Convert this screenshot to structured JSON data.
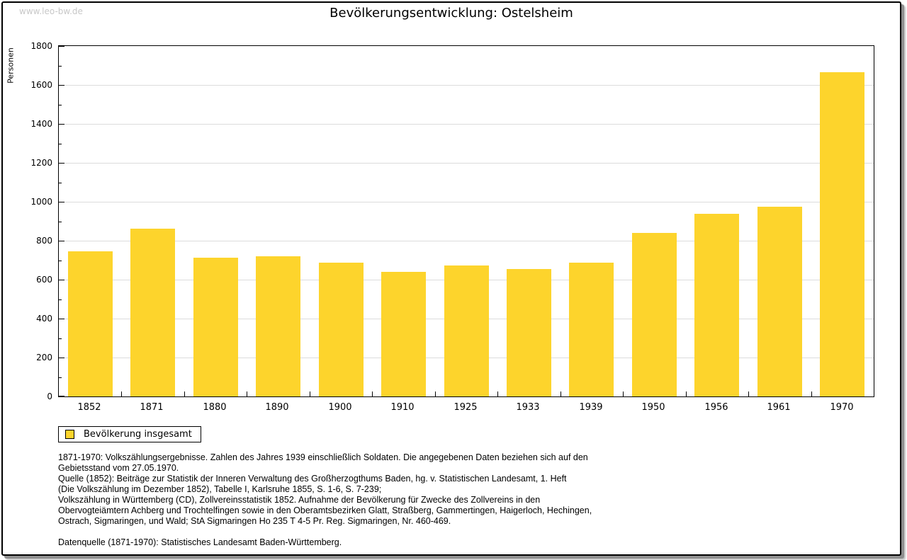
{
  "page": {
    "watermark": "www.leo-bw.de",
    "title": "Bevölkerungsentwicklung: Ostelsheim"
  },
  "chart_data": {
    "type": "bar",
    "title": "Bevölkerungsentwicklung: Ostelsheim",
    "ylabel": "Personen",
    "xlabel": "",
    "categories": [
      "1852",
      "1871",
      "1880",
      "1890",
      "1900",
      "1910",
      "1925",
      "1933",
      "1939",
      "1950",
      "1956",
      "1961",
      "1970"
    ],
    "values": [
      747,
      862,
      714,
      719,
      686,
      639,
      671,
      654,
      686,
      840,
      937,
      975,
      1664
    ],
    "series_name": "Bevölkerung insgesamt",
    "ylim": [
      0,
      1800
    ],
    "y_major_step": 200,
    "y_minor_step": 100,
    "grid": "horizontal-major",
    "legend_position": "bottom-left",
    "colors": {
      "bar": "#fdd42c",
      "gridline": "#dcdcdc",
      "axis": "#000000",
      "watermark": "#c8c8c8"
    }
  },
  "legend": {
    "items": [
      {
        "label": "Bevölkerung insgesamt",
        "swatch_color": "#fdd42c"
      }
    ]
  },
  "footnotes": {
    "lines": [
      "1871-1970: Volkszählungsergebnisse. Zahlen des Jahres 1939 einschließlich Soldaten. Die angegebenen Daten beziehen sich auf den",
      "Gebietsstand vom 27.05.1970.",
      "Quelle (1852): Beiträge zur Statistik der Inneren Verwaltung des Großherzogthums Baden, hg. v. Statistischen Landesamt, 1. Heft",
      "(Die Volkszählung im Dezember 1852), Tabelle I, Karlsruhe 1855, S. 1-6, S. 7-239;",
      "Volkszählung in Württemberg (CD), Zollvereinsstatistik 1852. Aufnahme der Bevölkerung für Zwecke des Zollvereins in den",
      "Obervogteiämtern Achberg und Trochtelfingen sowie in den Oberamtsbezirken Glatt, Straßberg, Gammertingen, Haigerloch, Hechingen,",
      "Ostrach, Sigmaringen, und Wald; StA Sigmaringen Ho 235 T 4-5 Pr. Reg. Sigmaringen, Nr. 460-469.",
      "",
      "Datenquelle (1871-1970): Statistisches Landesamt Baden-Württemberg."
    ]
  }
}
